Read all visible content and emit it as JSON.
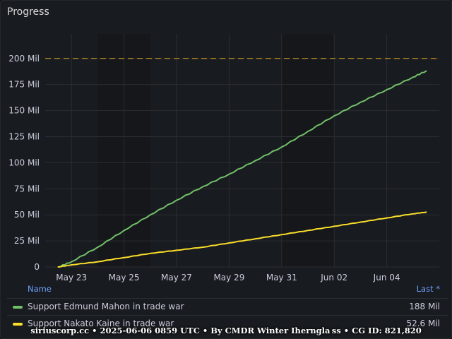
{
  "panel": {
    "title": "Progress"
  },
  "legend": {
    "name_header": "Name",
    "last_header": "Last *",
    "rows": [
      {
        "name": "Support Edmund Mahon in trade war",
        "last": "188 Mil",
        "color": "#73bf69"
      },
      {
        "name": "Support Nakato Kaine in trade war",
        "last": "52.6 Mil",
        "color": "#fade2a"
      }
    ]
  },
  "footer": "siriuscorp.cc • 2025-06-06 0859 UTC • By CMDR Winter Iherngla ss • CG ID: 821,820",
  "chart_data": {
    "type": "line",
    "x_range": [
      "2025-05-22",
      "2025-06-06"
    ],
    "ylim": [
      0,
      210
    ],
    "y_unit": "Mil",
    "y_ticks": [
      "0",
      "25 Mil",
      "50 Mil",
      "75 Mil",
      "100 Mil",
      "125 Mil",
      "150 Mil",
      "175 Mil",
      "200 Mil"
    ],
    "x_ticks": [
      "May 23",
      "May 25",
      "May 27",
      "May 29",
      "May 31",
      "Jun 02",
      "Jun 04"
    ],
    "target_line": {
      "value": 200,
      "color": "#e0a51f"
    },
    "grid": true,
    "series": [
      {
        "name": "Support Edmund Mahon in trade war",
        "color": "#73bf69",
        "x": [
          "2025-05-22 12:00",
          "2025-05-23 00:00",
          "2025-05-24 00:00",
          "2025-05-25 00:00",
          "2025-05-26 00:00",
          "2025-05-27 00:00",
          "2025-05-28 00:00",
          "2025-05-29 00:00",
          "2025-05-30 00:00",
          "2025-05-31 00:00",
          "2025-06-01 00:00",
          "2025-06-02 00:00",
          "2025-06-03 00:00",
          "2025-06-04 00:00",
          "2025-06-05 00:00",
          "2025-06-05 12:00"
        ],
        "values": [
          0,
          5,
          19,
          35,
          50,
          64,
          77,
          89,
          102,
          115,
          130,
          145,
          158,
          170,
          182,
          188
        ]
      },
      {
        "name": "Support Nakato Kaine in trade war",
        "color": "#fade2a",
        "x": [
          "2025-05-22 12:00",
          "2025-05-23 00:00",
          "2025-05-24 00:00",
          "2025-05-25 00:00",
          "2025-05-26 00:00",
          "2025-05-27 00:00",
          "2025-05-28 00:00",
          "2025-05-29 00:00",
          "2025-05-30 00:00",
          "2025-05-31 00:00",
          "2025-06-01 00:00",
          "2025-06-02 00:00",
          "2025-06-03 00:00",
          "2025-06-04 00:00",
          "2025-06-05 00:00",
          "2025-06-05 12:00"
        ],
        "values": [
          0,
          2,
          5,
          9,
          13,
          16,
          19,
          23,
          27,
          31,
          35,
          39,
          43,
          47,
          51,
          52.6
        ]
      }
    ]
  }
}
